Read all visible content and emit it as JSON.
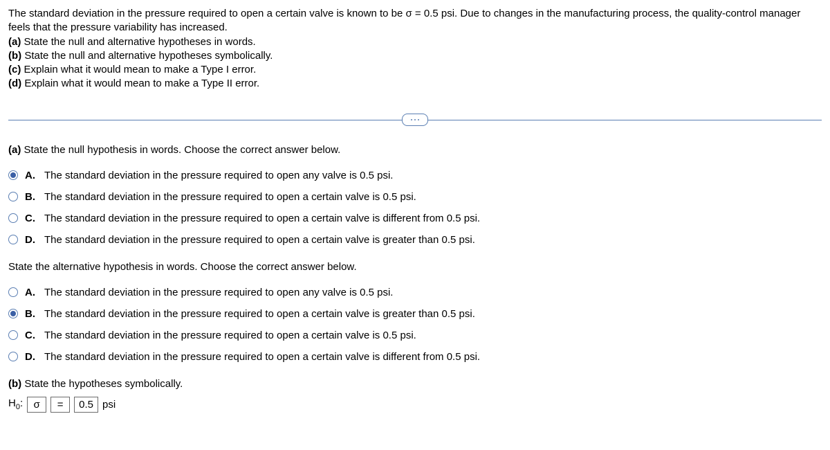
{
  "problem": {
    "intro": "The standard deviation in the pressure required to open a certain valve is known to be σ = 0.5 psi. Due to changes in the manufacturing process, the quality-control manager feels that the pressure variability has increased.",
    "a": "(a)",
    "a_text": " State the null and alternative hypotheses in words.",
    "b": "(b)",
    "b_text": " State the null and alternative hypotheses symbolically.",
    "c": "(c)",
    "c_text": " Explain what it would mean to make a Type I error.",
    "d": "(d)",
    "d_text": " Explain what it would mean to make a Type II error."
  },
  "q1": {
    "label_a": "(a)",
    "prompt": " State the null hypothesis in words. Choose the correct answer below.",
    "options": {
      "A": {
        "letter": "A.",
        "text": "The standard deviation in the pressure required to open any valve is 0.5 psi.",
        "selected": true
      },
      "B": {
        "letter": "B.",
        "text": "The standard deviation in the pressure required to open a certain valve is 0.5 psi.",
        "selected": false
      },
      "C": {
        "letter": "C.",
        "text": "The standard deviation in the pressure required to open a certain valve is different from 0.5 psi.",
        "selected": false
      },
      "D": {
        "letter": "D.",
        "text": "The standard deviation in the pressure required to open a certain valve is greater than 0.5 psi.",
        "selected": false
      }
    }
  },
  "q2": {
    "prompt": "State the alternative hypothesis in words. Choose the correct answer below.",
    "options": {
      "A": {
        "letter": "A.",
        "text": "The standard deviation in the pressure required to open any valve is 0.5 psi.",
        "selected": false
      },
      "B": {
        "letter": "B.",
        "text": "The standard deviation in the pressure required to open a certain valve is greater than 0.5 psi.",
        "selected": true
      },
      "C": {
        "letter": "C.",
        "text": "The standard deviation in the pressure required to open a certain valve is 0.5 psi.",
        "selected": false
      },
      "D": {
        "letter": "D.",
        "text": "The standard deviation in the pressure required to open a certain valve is different from 0.5 psi.",
        "selected": false
      }
    }
  },
  "partB": {
    "label": "(b)",
    "text": " State the hypotheses symbolically.",
    "h0_prefix": "H",
    "h0_sub": "0",
    "colon": ":",
    "sigma_box": "σ",
    "equals_box": "=",
    "value_box": "0.5",
    "psi": "psi"
  }
}
